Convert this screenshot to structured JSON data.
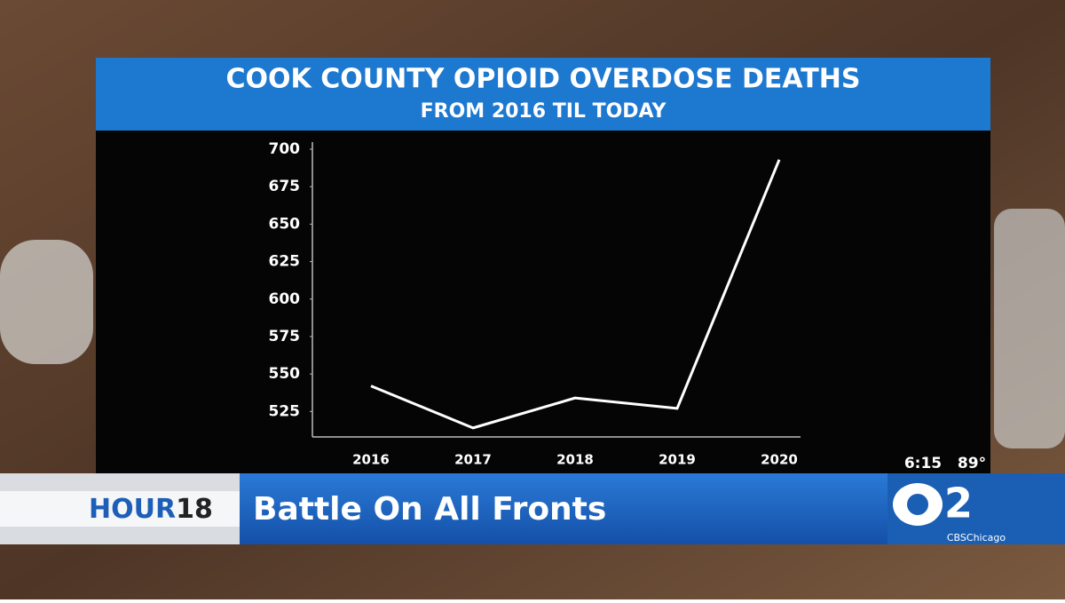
{
  "chart_data": {
    "type": "line",
    "title": "COOK COUNTY OPIOID OVERDOSE DEATHS",
    "subtitle": "FROM 2016 TIL TODAY",
    "categories": [
      "2016",
      "2017",
      "2018",
      "2019",
      "2020"
    ],
    "values": [
      542,
      514,
      534,
      527,
      693
    ],
    "color": "#ffffff",
    "ylim": [
      508,
      700
    ],
    "yticks": [
      525,
      550,
      575,
      600,
      625,
      650,
      675,
      700
    ],
    "grid": false
  },
  "overlay": {
    "time": "6:15",
    "temperature": "89°",
    "show": "HOUR",
    "show_number": "18",
    "headline": "Battle On All Fronts",
    "station_number": "2",
    "handle": "CBSChicago"
  }
}
